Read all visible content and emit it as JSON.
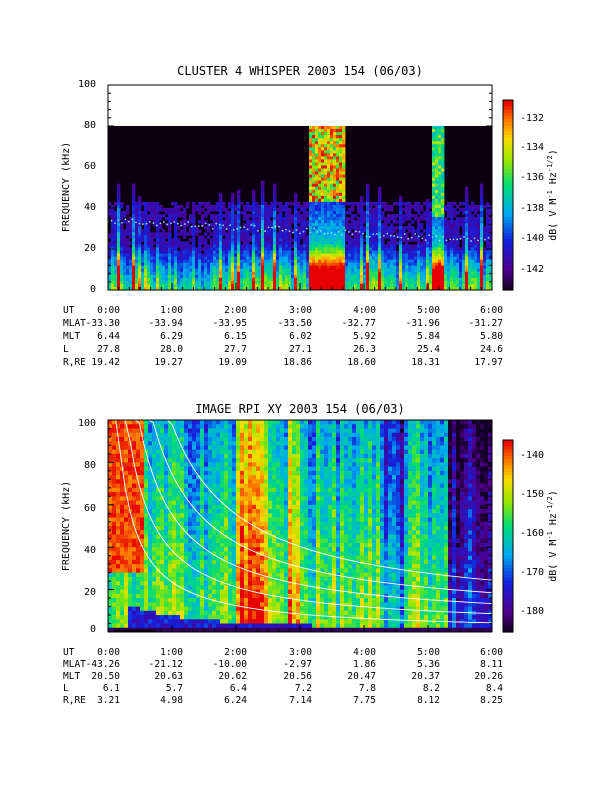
{
  "chart_data": [
    {
      "type": "heatmap",
      "title": "CLUSTER 4 WHISPER 2003 154 (06/03)",
      "ylabel": "FREQUENCY (kHz)",
      "ylim": [
        0,
        100
      ],
      "y_ticks": [
        "0",
        "20",
        "40",
        "60",
        "80",
        "100"
      ],
      "data_freq_max_khz": 80,
      "xlim": [
        "0:00",
        "6:00"
      ],
      "colorbar": {
        "label": "dB( V M⁻¹ Hz⁻¹ᐟ²)",
        "label_main": "dB( V M",
        "label_sup1": "-1",
        "label_hz": " Hz",
        "label_sup2": "-1/2",
        "label_end": ")",
        "range": [
          -143.5,
          -131
        ],
        "ticks": [
          "-132",
          "-134",
          "-136",
          "-138",
          "-140",
          "-142"
        ]
      },
      "ephemeris": {
        "row_labels": [
          "UT",
          "MLAT",
          "MLT",
          "L",
          "R,RE"
        ],
        "columns": [
          {
            "UT": "0:00",
            "MLAT": "-33.30",
            "MLT": "6.44",
            "L": "27.8",
            "R,RE": "19.42"
          },
          {
            "UT": "1:00",
            "MLAT": "-33.94",
            "MLT": "6.29",
            "L": "28.0",
            "R,RE": "19.27"
          },
          {
            "UT": "2:00",
            "MLAT": "-33.95",
            "MLT": "6.15",
            "L": "27.7",
            "R,RE": "19.09"
          },
          {
            "UT": "3:00",
            "MLAT": "-33.50",
            "MLT": "6.02",
            "L": "27.1",
            "R,RE": "18.86"
          },
          {
            "UT": "4:00",
            "MLAT": "-32.77",
            "MLT": "5.92",
            "L": "26.3",
            "R,RE": "18.60"
          },
          {
            "UT": "5:00",
            "MLAT": "-31.96",
            "MLT": "5.84",
            "L": "25.4",
            "R,RE": "18.31"
          },
          {
            "UT": "6:00",
            "MLAT": "-31.27",
            "MLT": "5.80",
            "L": "24.6",
            "R,RE": "17.97"
          }
        ]
      }
    },
    {
      "type": "heatmap",
      "title": "IMAGE RPI XY 2003 154 (06/03)",
      "ylabel": "FREQUENCY (kHz)",
      "ylim": [
        0,
        100
      ],
      "y_ticks": [
        "0",
        "20",
        "40",
        "60",
        "80",
        "100"
      ],
      "xlim": [
        "0:00",
        "6:00"
      ],
      "colorbar": {
        "label": "dB( V M⁻¹ Hz⁻¹ᐟ²)",
        "label_main": "dB( V M",
        "label_sup1": "-1",
        "label_hz": " Hz",
        "label_sup2": "-1/2",
        "label_end": ")",
        "range": [
          -185,
          -137
        ],
        "ticks": [
          "-140",
          "-150",
          "-160",
          "-170",
          "-180"
        ]
      },
      "ephemeris": {
        "row_labels": [
          "UT",
          "MLAT",
          "MLT",
          "L",
          "R,RE"
        ],
        "columns": [
          {
            "UT": "0:00",
            "MLAT": "-43.26",
            "MLT": "20.50",
            "L": "6.1",
            "R,RE": "3.21"
          },
          {
            "UT": "1:00",
            "MLAT": "-21.12",
            "MLT": "20.63",
            "L": "5.7",
            "R,RE": "4.98"
          },
          {
            "UT": "2:00",
            "MLAT": "-10.00",
            "MLT": "20.62",
            "L": "6.4",
            "R,RE": "6.24"
          },
          {
            "UT": "3:00",
            "MLAT": "-2.97",
            "MLT": "20.56",
            "L": "7.2",
            "R,RE": "7.14"
          },
          {
            "UT": "4:00",
            "MLAT": "1.86",
            "MLT": "20.47",
            "L": "7.8",
            "R,RE": "7.75"
          },
          {
            "UT": "5:00",
            "MLAT": "5.36",
            "MLT": "20.37",
            "L": "8.2",
            "R,RE": "8.12"
          },
          {
            "UT": "6:00",
            "MLAT": "8.11",
            "MLT": "20.26",
            "L": "8.4",
            "R,RE": "8.25"
          }
        ]
      }
    }
  ]
}
